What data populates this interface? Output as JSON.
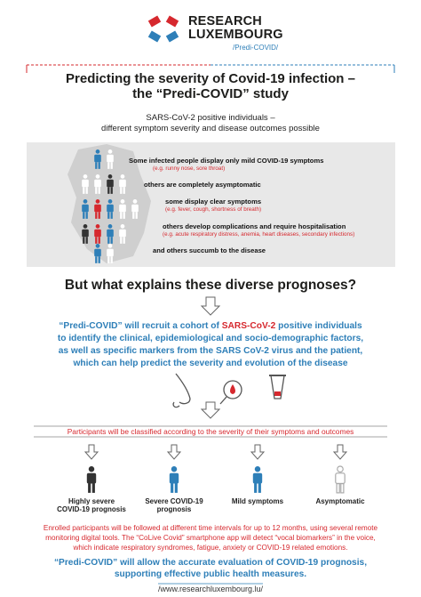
{
  "header": {
    "brand_line1": "RESEARCH",
    "brand_line2": "LUXEMBOURG",
    "tag": "/Predi-COVID/"
  },
  "title": {
    "line1": "Predicting the severity of Covid-19 infection –",
    "line2": "the “Predi-COVID” study"
  },
  "intro": {
    "line1": "SARS-CoV-2 positive individuals –",
    "line2": "different symptom severity and disease outcomes possible"
  },
  "outcomes": [
    {
      "text": "Some infected people display only mild COVID-19 symptoms",
      "note": "(e.g. runny nose, sore throat)"
    },
    {
      "text": "others are completely asymptomatic"
    },
    {
      "text": "some display clear symptoms",
      "note": "(e.g. fever, cough, shortness of breath)"
    },
    {
      "text": "others develop complications and require hospitalisation",
      "note": "(e.g. acute respiratory distress, anemia, heart diseases, secondary infections)"
    },
    {
      "text": "and others succumb to the disease"
    }
  ],
  "question": "But what explains these diverse prognoses?",
  "recruit": {
    "line1_start": "“Predi-COVID” will recruit a cohort of ",
    "line1_highlight": "SARS-CoV-2",
    "line1_end": " positive individuals",
    "line2": "to identify the clinical, epidemiological and socio-demographic factors,",
    "line3": "as well as specific markers from the SARS CoV-2 virus and the patient,",
    "line4": "which can help predict the severity and evolution of the disease"
  },
  "classified": "Participants will be classified according to the severity of their symptoms and outcomes",
  "categories": [
    {
      "line1": "Highly severe",
      "line2": "COVID-19 prognosis"
    },
    {
      "line1": "Severe COVID-19",
      "line2": "prognosis"
    },
    {
      "line1": "Mild symptoms"
    },
    {
      "line1": "Asymptomatic"
    }
  ],
  "followup": {
    "line1": "Enrolled participants will be followed at different time intervals for up to 12 months, using several remote",
    "line2": "monitoring digital tools. The “CoLive Covid” smartphone app will detect “vocal biomarkers” in the voice,",
    "line3": "which indicate respiratory syndromes, fatigue, anxiety or COVID-19 related emotions."
  },
  "conclusion": {
    "line1": "“Predi-COVID” will allow the accurate evaluation of COVID-19 prognosis,",
    "line2": "supporting effective public health measures."
  },
  "footer": "/www.researchluxembourg.lu/"
}
